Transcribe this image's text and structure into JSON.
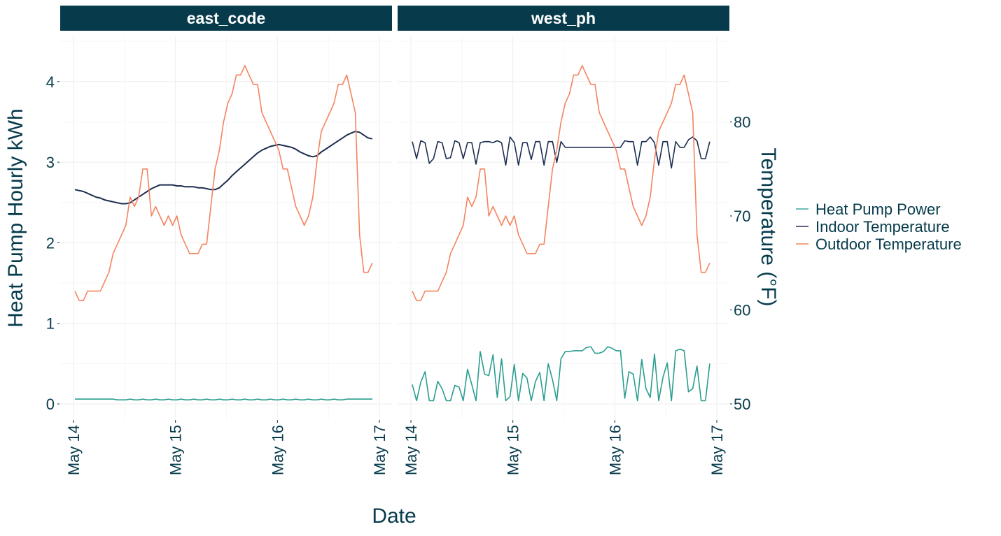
{
  "chart_data": {
    "type": "line",
    "facets": [
      "east_code",
      "west_ph"
    ],
    "xlabel": "Date",
    "ylabel": "Heat Pump Hourly kWh",
    "ylabel_right": "Temperature (°F)",
    "x_ticks": [
      "May 14",
      "May 15",
      "May 16",
      "May 17"
    ],
    "y_ticks": [
      0,
      1,
      2,
      3,
      4
    ],
    "y_ticks_right": [
      50,
      60,
      70,
      80
    ],
    "ylim": [
      -0.2,
      4.5
    ],
    "grid": true,
    "legend_position": "right",
    "colors": {
      "Heat Pump Power": "#2a9d8f",
      "Indoor Temperature": "#1d2d50",
      "Outdoor Temperature": "#f4845f",
      "strip": "#073b4c"
    },
    "legend": [
      "Heat Pump Power",
      "Indoor Temperature",
      "Outdoor Temperature"
    ],
    "x": [
      "May 14 00:00",
      "May 14 01:00",
      "May 14 02:00",
      "May 14 03:00",
      "May 14 04:00",
      "May 14 05:00",
      "May 14 06:00",
      "May 14 07:00",
      "May 14 08:00",
      "May 14 09:00",
      "May 14 10:00",
      "May 14 11:00",
      "May 14 12:00",
      "May 14 13:00",
      "May 14 14:00",
      "May 14 15:00",
      "May 14 16:00",
      "May 14 17:00",
      "May 14 18:00",
      "May 14 19:00",
      "May 14 20:00",
      "May 14 21:00",
      "May 14 22:00",
      "May 14 23:00",
      "May 15 00:00",
      "May 15 01:00",
      "May 15 02:00",
      "May 15 03:00",
      "May 15 04:00",
      "May 15 05:00",
      "May 15 06:00",
      "May 15 07:00",
      "May 15 08:00",
      "May 15 09:00",
      "May 15 10:00",
      "May 15 11:00",
      "May 15 12:00",
      "May 15 13:00",
      "May 15 14:00",
      "May 15 15:00",
      "May 15 16:00",
      "May 15 17:00",
      "May 15 18:00",
      "May 15 19:00",
      "May 15 20:00",
      "May 15 21:00",
      "May 15 22:00",
      "May 15 23:00",
      "May 16 00:00",
      "May 16 01:00",
      "May 16 02:00",
      "May 16 03:00",
      "May 16 04:00",
      "May 16 05:00",
      "May 16 06:00",
      "May 16 07:00",
      "May 16 08:00",
      "May 16 09:00",
      "May 16 10:00",
      "May 16 11:00",
      "May 16 12:00",
      "May 16 13:00",
      "May 16 14:00",
      "May 16 15:00",
      "May 16 16:00",
      "May 16 17:00",
      "May 16 18:00",
      "May 16 19:00",
      "May 16 20:00",
      "May 16 21:00",
      "May 16 22:00"
    ],
    "panels": [
      {
        "title": "east_code",
        "series": [
          {
            "name": "Heat Pump Power",
            "axis": "left",
            "values": [
              0.06,
              0.06,
              0.06,
              0.06,
              0.06,
              0.06,
              0.06,
              0.06,
              0.06,
              0.06,
              0.05,
              0.05,
              0.05,
              0.06,
              0.05,
              0.05,
              0.06,
              0.05,
              0.05,
              0.06,
              0.05,
              0.05,
              0.06,
              0.05,
              0.05,
              0.06,
              0.05,
              0.05,
              0.06,
              0.05,
              0.05,
              0.06,
              0.05,
              0.05,
              0.06,
              0.05,
              0.05,
              0.06,
              0.05,
              0.05,
              0.06,
              0.05,
              0.05,
              0.06,
              0.05,
              0.05,
              0.06,
              0.05,
              0.05,
              0.06,
              0.05,
              0.05,
              0.06,
              0.05,
              0.05,
              0.06,
              0.05,
              0.05,
              0.06,
              0.05,
              0.05,
              0.06,
              0.05,
              0.05,
              0.06,
              0.06,
              0.06,
              0.06,
              0.06,
              0.06,
              0.06
            ]
          },
          {
            "name": "Indoor Temperature",
            "axis": "right",
            "values": [
              72.8,
              72.7,
              72.6,
              72.4,
              72.2,
              72.0,
              71.9,
              71.7,
              71.6,
              71.5,
              71.4,
              71.3,
              71.3,
              71.4,
              71.7,
              72.0,
              72.3,
              72.6,
              72.9,
              73.1,
              73.3,
              73.3,
              73.3,
              73.3,
              73.2,
              73.2,
              73.1,
              73.1,
              73.1,
              73.0,
              73.0,
              72.9,
              72.8,
              72.8,
              73.0,
              73.4,
              73.8,
              74.3,
              74.7,
              75.1,
              75.5,
              75.9,
              76.3,
              76.7,
              77.0,
              77.2,
              77.4,
              77.5,
              77.6,
              77.5,
              77.4,
              77.3,
              77.1,
              76.8,
              76.6,
              76.4,
              76.3,
              76.4,
              76.8,
              77.1,
              77.4,
              77.7,
              78.0,
              78.3,
              78.6,
              78.8,
              79.0,
              78.9,
              78.6,
              78.3,
              78.2
            ]
          },
          {
            "name": "Outdoor Temperature",
            "axis": "right",
            "values": [
              62,
              61,
              61,
              62,
              62,
              62,
              62,
              63,
              64,
              66,
              67,
              68,
              69,
              72,
              71,
              72,
              75,
              75,
              70,
              71,
              70,
              69,
              70,
              69,
              70,
              68,
              67,
              66,
              66,
              66,
              67,
              67,
              71,
              75,
              77,
              80,
              82,
              83,
              85,
              85,
              86,
              85,
              84,
              84,
              81,
              80,
              79,
              78,
              77,
              75,
              75,
              73,
              71,
              70,
              69,
              70,
              72,
              76,
              79,
              80,
              81,
              82,
              84,
              84,
              85,
              83,
              81,
              68,
              64,
              64,
              65
            ]
          }
        ]
      },
      {
        "title": "west_ph",
        "series": [
          {
            "name": "Heat Pump Power",
            "axis": "left",
            "values": [
              0.24,
              0.04,
              0.27,
              0.4,
              0.04,
              0.04,
              0.28,
              0.19,
              0.04,
              0.04,
              0.23,
              0.21,
              0.04,
              0.43,
              0.24,
              0.04,
              0.65,
              0.37,
              0.35,
              0.61,
              0.08,
              0.56,
              0.04,
              0.09,
              0.49,
              0.04,
              0.38,
              0.32,
              0.04,
              0.28,
              0.39,
              0.04,
              0.5,
              0.3,
              0.04,
              0.56,
              0.65,
              0.65,
              0.66,
              0.66,
              0.66,
              0.7,
              0.71,
              0.63,
              0.63,
              0.65,
              0.71,
              0.69,
              0.66,
              0.66,
              0.07,
              0.4,
              0.37,
              0.04,
              0.55,
              0.19,
              0.08,
              0.62,
              0.04,
              0.33,
              0.51,
              0.04,
              0.66,
              0.68,
              0.66,
              0.15,
              0.19,
              0.47,
              0.04,
              0.04,
              0.5
            ]
          },
          {
            "name": "Indoor Temperature",
            "axis": "right",
            "values": [
              77.9,
              76.1,
              78.0,
              77.8,
              75.6,
              76.1,
              77.9,
              77.8,
              76.1,
              76.2,
              78.0,
              77.8,
              76.1,
              77.8,
              77.8,
              75.5,
              77.8,
              77.9,
              77.9,
              77.8,
              78.0,
              77.8,
              75.4,
              78.4,
              77.8,
              75.4,
              77.8,
              77.8,
              76.0,
              77.9,
              77.9,
              75.4,
              77.9,
              77.9,
              75.7,
              77.9,
              77.3,
              77.3,
              77.3,
              77.3,
              77.3,
              77.3,
              77.3,
              77.3,
              77.3,
              77.3,
              77.3,
              77.3,
              77.3,
              77.3,
              78.0,
              77.9,
              77.9,
              75.4,
              77.9,
              77.9,
              78.4,
              77.8,
              75.4,
              77.9,
              77.9,
              75.1,
              77.9,
              77.3,
              77.3,
              78.1,
              78.4,
              78.0,
              76.1,
              76.1,
              77.9
            ]
          },
          {
            "name": "Outdoor Temperature",
            "axis": "right",
            "values": [
              62,
              61,
              61,
              62,
              62,
              62,
              62,
              63,
              64,
              66,
              67,
              68,
              69,
              72,
              71,
              72,
              75,
              75,
              70,
              71,
              70,
              69,
              70,
              69,
              70,
              68,
              67,
              66,
              66,
              66,
              67,
              67,
              71,
              75,
              77,
              80,
              82,
              83,
              85,
              85,
              86,
              85,
              84,
              84,
              81,
              80,
              79,
              78,
              77,
              75,
              75,
              73,
              71,
              70,
              69,
              70,
              72,
              76,
              79,
              80,
              81,
              82,
              84,
              84,
              85,
              83,
              81,
              68,
              64,
              64,
              65
            ]
          }
        ]
      }
    ]
  }
}
